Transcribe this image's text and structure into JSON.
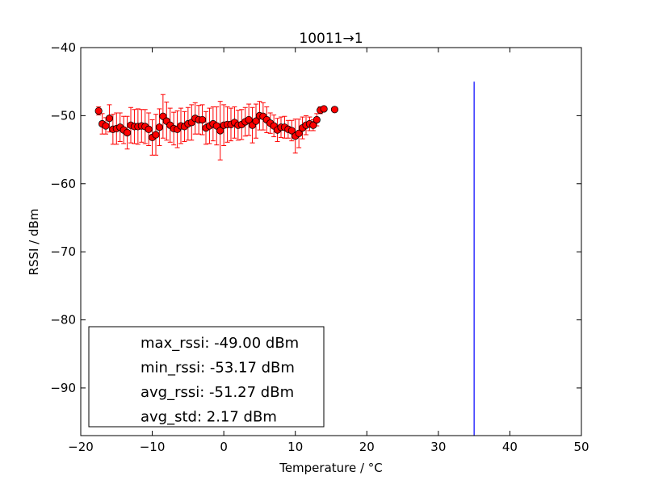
{
  "chart_data": {
    "type": "scatter",
    "title": "10011→1",
    "xlabel": "Temperature / °C",
    "ylabel": "RSSI / dBm",
    "xlim": [
      -20,
      50
    ],
    "ylim": [
      -97,
      -40
    ],
    "xticks": [
      -20,
      -10,
      0,
      10,
      20,
      30,
      40,
      50
    ],
    "yticks": [
      -90,
      -80,
      -70,
      -60,
      -50,
      -40
    ],
    "xtick_labels": [
      "−20",
      "−10",
      "0",
      "10",
      "20",
      "30",
      "40",
      "50"
    ],
    "ytick_labels": [
      "−90",
      "−80",
      "−70",
      "−60",
      "−50",
      "−40"
    ],
    "grid": false,
    "marker_color": "#ff0000",
    "errorbar_color": "#ff0000",
    "vline_color": "#0000ff",
    "series": [
      {
        "x": [
          -17.5,
          -17,
          -16.5,
          -16,
          -15.5,
          -15,
          -14.5,
          -14,
          -13.5,
          -13,
          -12.5,
          -12,
          -11.5,
          -11,
          -10.5,
          -10,
          -9.5,
          -9,
          -8.5,
          -8,
          -7.5,
          -7,
          -6.5,
          -6,
          -5.5,
          -5,
          -4.5,
          -4,
          -3.5,
          -3,
          -2.5,
          -2,
          -1.5,
          -1,
          -0.5,
          0,
          0.5,
          1,
          1.5,
          2,
          2.5,
          3,
          3.5,
          4,
          4.5,
          5,
          5.5,
          6,
          6.5,
          7,
          7.5,
          8,
          8.5,
          9,
          9.5,
          10,
          10.5,
          11,
          11.5,
          12,
          12.5,
          13,
          13.5,
          14,
          15.5
        ],
        "y": [
          -49.3,
          -51.2,
          -51.5,
          -50.4,
          -52.0,
          -51.9,
          -51.7,
          -52.1,
          -52.5,
          -51.4,
          -51.6,
          -51.6,
          -51.5,
          -51.6,
          -52.0,
          -53.2,
          -52.8,
          -51.7,
          -50.1,
          -50.8,
          -51.4,
          -51.9,
          -52.0,
          -51.5,
          -51.6,
          -51.2,
          -51.0,
          -50.4,
          -50.6,
          -50.6,
          -51.8,
          -51.5,
          -51.2,
          -51.5,
          -52.2,
          -51.4,
          -51.3,
          -51.3,
          -51.0,
          -51.4,
          -51.3,
          -50.9,
          -50.6,
          -51.4,
          -50.8,
          -50.0,
          -50.1,
          -50.6,
          -51.1,
          -51.5,
          -52.1,
          -51.7,
          -51.7,
          -52.0,
          -52.2,
          -53.0,
          -52.6,
          -51.8,
          -51.4,
          -51.2,
          -51.4,
          -50.6,
          -49.2,
          -49.0,
          -49.1
        ],
        "err": [
          0.6,
          1.5,
          1.2,
          2.0,
          2.2,
          2.3,
          2.1,
          2.0,
          2.4,
          2.6,
          2.5,
          2.6,
          2.4,
          2.5,
          2.4,
          2.6,
          3.0,
          2.7,
          3.2,
          2.8,
          2.5,
          2.4,
          2.7,
          2.6,
          2.2,
          2.4,
          2.6,
          2.3,
          2.1,
          2.2,
          2.4,
          2.6,
          2.5,
          2.8,
          4.3,
          3.0,
          2.6,
          2.4,
          2.3,
          2.2,
          2.2,
          2.1,
          2.3,
          2.6,
          2.5,
          2.1,
          2.0,
          1.9,
          1.5,
          1.6,
          1.7,
          1.5,
          1.6,
          1.3,
          1.5,
          2.5,
          2.1,
          1.6,
          1.4,
          1.0,
          0.8,
          0.9,
          0.5,
          0.0,
          0.0
        ]
      }
    ],
    "vline": {
      "x": 35,
      "ymin": -97,
      "ymax": -45
    },
    "legend": {
      "position": "lower-left",
      "entries": [
        "max_rssi: -49.00 dBm",
        "min_rssi: -53.17 dBm",
        "avg_rssi: -51.27 dBm",
        "avg_std: 2.17 dBm"
      ]
    }
  }
}
